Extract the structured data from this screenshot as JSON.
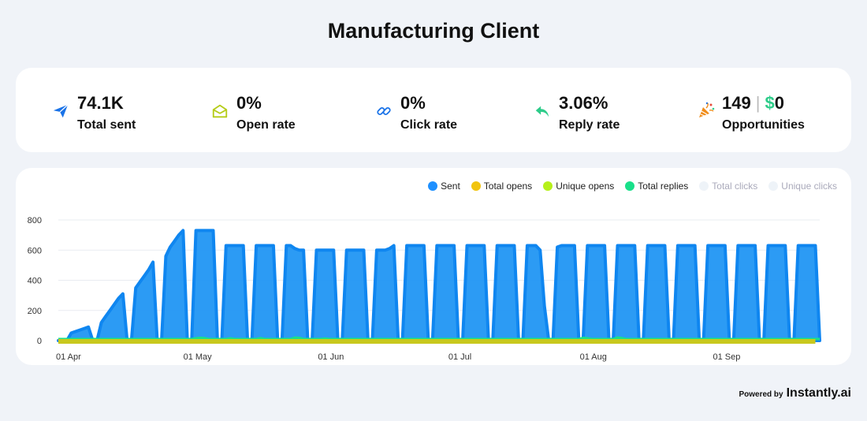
{
  "page": {
    "title": "Manufacturing Client"
  },
  "stats": [
    {
      "icon": "paper-plane-icon",
      "value": "74.1K",
      "label": "Total sent",
      "color": "#1a73e8"
    },
    {
      "icon": "open-envelope-icon",
      "value": "0%",
      "label": "Open rate",
      "color": "#b5cc18"
    },
    {
      "icon": "link-icon",
      "value": "0%",
      "label": "Click rate",
      "color": "#1a73e8"
    },
    {
      "icon": "reply-arrow-icon",
      "value": "3.06%",
      "label": "Reply rate",
      "color": "#2ecc8a"
    },
    {
      "icon": "party-popper-icon",
      "value_count": "149",
      "separator": "|",
      "value_money_symbol": "$",
      "value_money": "0",
      "label": "Opportunities",
      "color": "#f08c1a"
    }
  ],
  "legend": [
    {
      "name": "Sent",
      "color": "#1e90ff",
      "active": true
    },
    {
      "name": "Total opens",
      "color": "#f1c40f",
      "active": true
    },
    {
      "name": "Unique opens",
      "color": "#b6f01a",
      "active": true
    },
    {
      "name": "Total replies",
      "color": "#19e08a",
      "active": true
    },
    {
      "name": "Total clicks",
      "color": "#eef3f8",
      "active": false
    },
    {
      "name": "Unique clicks",
      "color": "#eef3f8",
      "active": false
    }
  ],
  "footer": {
    "powered_by": "Powered by",
    "brand": "Instantly.ai"
  },
  "chart_data": {
    "type": "area",
    "x_start": "2024-03-30",
    "ylim": [
      0,
      800
    ],
    "yticks": [
      0,
      200,
      400,
      600,
      800
    ],
    "xtick_labels": [
      {
        "date": "2024-04-01",
        "label": "01 Apr"
      },
      {
        "date": "2024-05-01",
        "label": "01 May"
      },
      {
        "date": "2024-06-01",
        "label": "01 Jun"
      },
      {
        "date": "2024-07-01",
        "label": "01 Jul"
      },
      {
        "date": "2024-08-01",
        "label": "01 Aug"
      },
      {
        "date": "2024-09-01",
        "label": "01 Sep"
      }
    ],
    "series": [
      {
        "name": "Sent",
        "color": "#1e90ff",
        "values": [
          0,
          0,
          0,
          50,
          60,
          70,
          80,
          90,
          0,
          0,
          120,
          160,
          200,
          240,
          280,
          310,
          0,
          0,
          350,
          390,
          430,
          470,
          520,
          0,
          0,
          560,
          620,
          660,
          700,
          730,
          0,
          0,
          730,
          730,
          730,
          730,
          730,
          0,
          0,
          630,
          630,
          630,
          630,
          630,
          0,
          0,
          630,
          630,
          630,
          630,
          630,
          0,
          0,
          630,
          630,
          610,
          600,
          600,
          0,
          0,
          600,
          600,
          600,
          600,
          600,
          0,
          0,
          600,
          600,
          600,
          600,
          600,
          0,
          0,
          600,
          600,
          600,
          610,
          630,
          0,
          0,
          630,
          630,
          630,
          630,
          630,
          0,
          0,
          630,
          630,
          630,
          630,
          630,
          0,
          0,
          630,
          630,
          630,
          630,
          630,
          0,
          0,
          630,
          630,
          630,
          630,
          630,
          0,
          0,
          630,
          630,
          630,
          600,
          230,
          0,
          0,
          620,
          630,
          630,
          630,
          630,
          0,
          0,
          630,
          630,
          630,
          630,
          630,
          0,
          0,
          630,
          630,
          630,
          630,
          630,
          0,
          0,
          630,
          630,
          630,
          630,
          630,
          0,
          0,
          630,
          630,
          630,
          630,
          630,
          0,
          0,
          630,
          630,
          630,
          630,
          630,
          0,
          0,
          630,
          630,
          630,
          630,
          630,
          0,
          0,
          630,
          630,
          630,
          630,
          630,
          0,
          0,
          630,
          630,
          630,
          630,
          630,
          0
        ]
      },
      {
        "name": "Total replies",
        "color": "#19e08a",
        "values": [
          0,
          0,
          0,
          0,
          0,
          0,
          0,
          0,
          0,
          0,
          0,
          0,
          0,
          0,
          0,
          0,
          0,
          0,
          0,
          0,
          0,
          0,
          0,
          0,
          0,
          0,
          0,
          0,
          0,
          0,
          0,
          0,
          5,
          8,
          6,
          0,
          0,
          0,
          0,
          0,
          4,
          0,
          0,
          0,
          0,
          0,
          0,
          6,
          0,
          0,
          0,
          0,
          0,
          0,
          0,
          10,
          8,
          0,
          0,
          0,
          0,
          0,
          3,
          0,
          0,
          0,
          0,
          0,
          0,
          0,
          0,
          0,
          0,
          0,
          0,
          0,
          0,
          0,
          0,
          0,
          0,
          0,
          0,
          0,
          0,
          0,
          0,
          0,
          0,
          0,
          0,
          0,
          0,
          0,
          0,
          0,
          0,
          0,
          0,
          0,
          0,
          0,
          0,
          0,
          0,
          0,
          0,
          0,
          0,
          0,
          0,
          0,
          0,
          0,
          0,
          0,
          0,
          0,
          0,
          0,
          0,
          0,
          8,
          5,
          0,
          0,
          0,
          0,
          0,
          0,
          10,
          6,
          0,
          0,
          0,
          0,
          0,
          0,
          0,
          0,
          0,
          0,
          0,
          0,
          0,
          0,
          0,
          0,
          0,
          0,
          0,
          0,
          0,
          0,
          0,
          0,
          0,
          0,
          0,
          0,
          0,
          0,
          0,
          0,
          0,
          0,
          0,
          0,
          0,
          0,
          0,
          0,
          0,
          0,
          0,
          0,
          0,
          0
        ]
      },
      {
        "name": "Total opens",
        "color": "#c8c81e",
        "values": [
          0,
          0,
          0,
          0,
          0,
          0,
          0,
          0,
          0,
          0,
          0,
          0,
          0,
          0,
          0,
          0,
          0,
          0,
          0,
          0,
          0,
          0,
          0,
          0,
          0,
          0,
          0,
          0,
          0,
          0,
          0,
          0,
          0,
          0,
          0,
          0,
          0,
          0,
          0,
          0,
          0,
          0,
          0,
          0,
          0,
          0,
          0,
          0,
          0,
          0,
          0,
          0,
          0,
          0,
          0,
          0,
          0,
          0,
          0,
          0,
          0,
          0,
          0,
          0,
          0,
          0,
          0,
          0,
          0,
          0,
          0,
          0,
          0,
          0,
          0,
          0,
          0,
          0,
          0,
          0,
          0,
          0,
          0,
          0,
          0,
          0,
          0,
          0,
          0,
          0,
          0,
          0,
          0,
          0,
          0,
          0,
          0,
          0,
          0,
          0,
          0,
          0,
          0,
          0,
          0,
          0,
          0,
          0,
          0,
          0,
          0,
          0,
          0,
          0,
          0,
          0,
          0,
          0,
          0,
          0,
          0,
          0,
          0,
          0,
          0,
          0,
          0,
          0,
          0,
          0,
          0,
          0,
          0,
          0,
          0,
          0,
          0,
          0,
          0,
          0,
          0,
          0,
          0,
          0,
          0,
          0,
          0,
          0,
          0,
          0,
          0,
          0,
          0,
          0,
          0,
          0,
          0,
          0,
          0,
          0,
          0,
          0,
          0,
          0,
          0,
          0,
          0,
          0,
          0,
          0,
          0,
          0,
          0,
          0,
          0,
          0,
          0
        ]
      }
    ]
  }
}
